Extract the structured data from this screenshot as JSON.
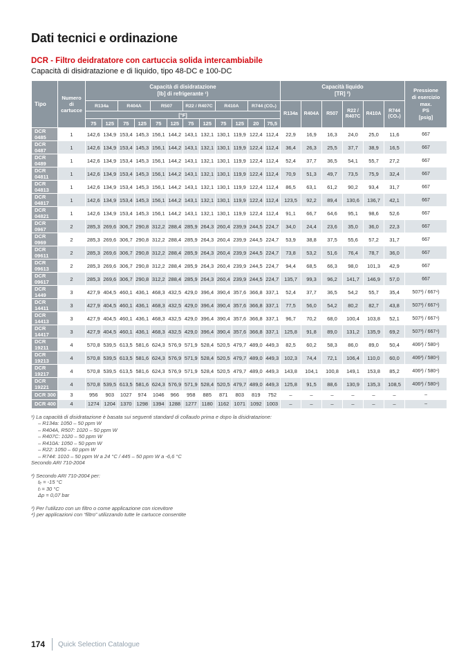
{
  "page": {
    "title": "Dati tecnici e ordinazione",
    "subtitle_red": "DCR - Filtro deidratatore con cartuccia solida intercambiabile",
    "subtitle": "Capacità di disidratazione e di liquido, tipo 48-DC e 100-DC",
    "footer": {
      "page_number": "174",
      "catalogue_name": "Quick Selection Catalogue"
    }
  },
  "table": {
    "header": {
      "tipo": "Tipo",
      "cartridges": "Numero\ndi\ncartucce",
      "dehydration_group": "Capacità di disidratazione\n[lb] di refrigerante ¹)",
      "liquid_group": "Capacità liquido\n[TR] ²)",
      "pressure": "Pressione\ndi esercizio\nmax.\nPS\n[psig]",
      "refrigerants": [
        "R134a",
        "R404A",
        "R507",
        "R22 / R407C",
        "R410A",
        "R744 (CO₂)"
      ],
      "liquid_refrigerants": [
        "R134a",
        "R404A",
        "R507",
        "R22 / R407C",
        "R410A",
        "R744 (CO₂)"
      ],
      "fahrenheit": "[°F]",
      "temps": [
        "75",
        "125",
        "75",
        "125",
        "75",
        "125",
        "75",
        "125",
        "75",
        "125",
        "20",
        "75,5"
      ]
    },
    "rows": [
      {
        "tipo": "DCR 0485",
        "cartridges": "1",
        "dehydration": [
          "142,6",
          "134,9",
          "153,4",
          "145,3",
          "156,1",
          "144,2",
          "143,1",
          "132,1",
          "130,1",
          "119,9",
          "122,4",
          "112,4"
        ],
        "liquid": [
          "22,9",
          "16,9",
          "16,3",
          "24,0",
          "25,0",
          "11,6"
        ],
        "pressure": "667"
      },
      {
        "tipo": "DCR 0487",
        "cartridges": "1",
        "dehydration": [
          "142,6",
          "134,9",
          "153,4",
          "145,3",
          "156,1",
          "144,2",
          "143,1",
          "132,1",
          "130,1",
          "119,9",
          "122,4",
          "112,4"
        ],
        "liquid": [
          "36,4",
          "26,3",
          "25,5",
          "37,7",
          "38,9",
          "16,5"
        ],
        "pressure": "667"
      },
      {
        "tipo": "DCR 0489",
        "cartridges": "1",
        "dehydration": [
          "142,6",
          "134,9",
          "153,4",
          "145,3",
          "156,1",
          "144,2",
          "143,1",
          "132,1",
          "130,1",
          "119,9",
          "122,4",
          "112,4"
        ],
        "liquid": [
          "52,4",
          "37,7",
          "36,5",
          "54,1",
          "55,7",
          "27,2"
        ],
        "pressure": "667"
      },
      {
        "tipo": "DCR 04811",
        "cartridges": "1",
        "dehydration": [
          "142,6",
          "134,9",
          "153,4",
          "145,3",
          "156,1",
          "144,2",
          "143,1",
          "132,1",
          "130,1",
          "119,9",
          "122,4",
          "112,4"
        ],
        "liquid": [
          "70,9",
          "51,3",
          "49,7",
          "73,5",
          "75,9",
          "32,4"
        ],
        "pressure": "667"
      },
      {
        "tipo": "DCR 04813",
        "cartridges": "1",
        "dehydration": [
          "142,6",
          "134,9",
          "153,4",
          "145,3",
          "156,1",
          "144,2",
          "143,1",
          "132,1",
          "130,1",
          "119,9",
          "122,4",
          "112,4"
        ],
        "liquid": [
          "86,5",
          "63,1",
          "61,2",
          "90,2",
          "93,4",
          "31,7"
        ],
        "pressure": "667"
      },
      {
        "tipo": "DCR 04817",
        "cartridges": "1",
        "dehydration": [
          "142,6",
          "134,9",
          "153,4",
          "145,3",
          "156,1",
          "144,2",
          "143,1",
          "132,1",
          "130,1",
          "119,9",
          "122,4",
          "112,4"
        ],
        "liquid": [
          "123,5",
          "92,2",
          "89,4",
          "130,6",
          "136,7",
          "42,1"
        ],
        "pressure": "667"
      },
      {
        "tipo": "DCR 04821",
        "cartridges": "1",
        "dehydration": [
          "142,6",
          "134,9",
          "153,4",
          "145,3",
          "156,1",
          "144,2",
          "143,1",
          "132,1",
          "130,1",
          "119,9",
          "122,4",
          "112,4"
        ],
        "liquid": [
          "91,1",
          "66,7",
          "64,6",
          "95,1",
          "98,6",
          "52,6"
        ],
        "pressure": "667"
      },
      {
        "tipo": "DCR 0967",
        "cartridges": "2",
        "dehydration": [
          "285,3",
          "269,6",
          "306,7",
          "290,8",
          "312,2",
          "288,4",
          "285,9",
          "264,3",
          "260,4",
          "239,9",
          "244,5",
          "224,7"
        ],
        "liquid": [
          "34,0",
          "24,4",
          "23,6",
          "35,0",
          "36,0",
          "22,3"
        ],
        "pressure": "667"
      },
      {
        "tipo": "DCR 0969",
        "cartridges": "2",
        "dehydration": [
          "285,3",
          "269,6",
          "306,7",
          "290,8",
          "312,2",
          "288,4",
          "285,9",
          "264,3",
          "260,4",
          "239,9",
          "244,5",
          "224,7"
        ],
        "liquid": [
          "53,9",
          "38,8",
          "37,5",
          "55,6",
          "57,2",
          "31,7"
        ],
        "pressure": "667"
      },
      {
        "tipo": "DCR 09611",
        "cartridges": "2",
        "dehydration": [
          "285,3",
          "269,6",
          "306,7",
          "290,8",
          "312,2",
          "288,4",
          "285,9",
          "264,3",
          "260,4",
          "239,9",
          "244,5",
          "224,7"
        ],
        "liquid": [
          "73,8",
          "53,2",
          "51,6",
          "76,4",
          "78,7",
          "36,0"
        ],
        "pressure": "667"
      },
      {
        "tipo": "DCR 09613",
        "cartridges": "2",
        "dehydration": [
          "285,3",
          "269,6",
          "306,7",
          "290,8",
          "312,2",
          "288,4",
          "285,9",
          "264,3",
          "260,4",
          "239,9",
          "244,5",
          "224,7"
        ],
        "liquid": [
          "94,4",
          "68,5",
          "66,3",
          "98,0",
          "101,3",
          "42,9"
        ],
        "pressure": "667"
      },
      {
        "tipo": "DCR 09617",
        "cartridges": "2",
        "dehydration": [
          "285,3",
          "269,6",
          "306,7",
          "290,8",
          "312,2",
          "288,4",
          "285,9",
          "264,3",
          "260,4",
          "239,9",
          "244,5",
          "224,7"
        ],
        "liquid": [
          "135,7",
          "99,3",
          "96,2",
          "141,7",
          "146,9",
          "57,0"
        ],
        "pressure": "667"
      },
      {
        "tipo": "DCR 1449",
        "cartridges": "3",
        "dehydration": [
          "427,9",
          "404,5",
          "460,1",
          "436,1",
          "468,3",
          "432,5",
          "429,0",
          "396,4",
          "390,4",
          "357,6",
          "366,8",
          "337,1"
        ],
        "liquid": [
          "52,4",
          "37,7",
          "36,5",
          "54,2",
          "55,7",
          "35,4"
        ],
        "pressure": "507³) / 667⁴)"
      },
      {
        "tipo": "DCR 14411",
        "cartridges": "3",
        "dehydration": [
          "427,9",
          "404,5",
          "460,1",
          "436,1",
          "468,3",
          "432,5",
          "429,0",
          "396,4",
          "390,4",
          "357,6",
          "366,8",
          "337,1"
        ],
        "liquid": [
          "77,5",
          "56,0",
          "54,2",
          "80,2",
          "82,7",
          "43,8"
        ],
        "pressure": "507³) / 667⁴)"
      },
      {
        "tipo": "DCR 14413",
        "cartridges": "3",
        "dehydration": [
          "427,9",
          "404,5",
          "460,1",
          "436,1",
          "468,3",
          "432,5",
          "429,0",
          "396,4",
          "390,4",
          "357,6",
          "366,8",
          "337,1"
        ],
        "liquid": [
          "96,7",
          "70,2",
          "68,0",
          "100,4",
          "103,8",
          "52,1"
        ],
        "pressure": "507³) / 667⁴)"
      },
      {
        "tipo": "DCR 14417",
        "cartridges": "3",
        "dehydration": [
          "427,9",
          "404,5",
          "460,1",
          "436,1",
          "468,3",
          "432,5",
          "429,0",
          "396,4",
          "390,4",
          "357,6",
          "366,8",
          "337,1"
        ],
        "liquid": [
          "125,8",
          "91,8",
          "89,0",
          "131,2",
          "135,9",
          "69,2"
        ],
        "pressure": "507³) / 667⁴)"
      },
      {
        "tipo": "DCR 19211",
        "cartridges": "4",
        "dehydration": [
          "570,8",
          "539,5",
          "613,5",
          "581,6",
          "624,3",
          "576,9",
          "571,9",
          "528,4",
          "520,5",
          "479,7",
          "489,0",
          "449,3"
        ],
        "liquid": [
          "82,5",
          "60,2",
          "58,3",
          "86,0",
          "89,0",
          "50,4"
        ],
        "pressure": "406³) / 580⁴)"
      },
      {
        "tipo": "DCR 19213",
        "cartridges": "4",
        "dehydration": [
          "570,8",
          "539,5",
          "613,5",
          "581,6",
          "624,3",
          "576,9",
          "571,9",
          "528,4",
          "520,5",
          "479,7",
          "489,0",
          "449,3"
        ],
        "liquid": [
          "102,3",
          "74,4",
          "72,1",
          "106,4",
          "110,0",
          "60,0"
        ],
        "pressure": "406³) / 580⁴)"
      },
      {
        "tipo": "DCR 19217",
        "cartridges": "4",
        "dehydration": [
          "570,8",
          "539,5",
          "613,5",
          "581,6",
          "624,3",
          "576,9",
          "571,9",
          "528,4",
          "520,5",
          "479,7",
          "489,0",
          "449,3"
        ],
        "liquid": [
          "143,8",
          "104,1",
          "100,8",
          "149,1",
          "153,8",
          "85,2"
        ],
        "pressure": "406³) / 580⁴)"
      },
      {
        "tipo": "DCR 19221",
        "cartridges": "4",
        "dehydration": [
          "570,8",
          "539,5",
          "613,5",
          "581,6",
          "624,3",
          "576,9",
          "571,9",
          "528,4",
          "520,5",
          "479,7",
          "489,0",
          "449,3"
        ],
        "liquid": [
          "125,8",
          "91,5",
          "88,6",
          "130,9",
          "135,3",
          "108,5"
        ],
        "pressure": "406³) / 580⁴)"
      },
      {
        "tipo": "DCR 300",
        "cartridges": "3",
        "dehydration": [
          "956",
          "903",
          "1027",
          "974",
          "1046",
          "966",
          "958",
          "885",
          "871",
          "803",
          "819",
          "752"
        ],
        "liquid": [
          "–",
          "–",
          "–",
          "–",
          "–",
          "–"
        ],
        "pressure": "–"
      },
      {
        "tipo": "DCR 400",
        "cartridges": "4",
        "dehydration": [
          "1274",
          "1204",
          "1370",
          "1298",
          "1394",
          "1288",
          "1277",
          "1180",
          "1162",
          "1071",
          "1092",
          "1003"
        ],
        "liquid": [
          "–",
          "–",
          "–",
          "–",
          "–",
          "–"
        ],
        "pressure": "–"
      }
    ]
  },
  "footnotes": [
    {
      "lines": [
        {
          "text": "¹) La capacità di disidratazione è basata sui seguenti standard di collaudo prima e dopo la disidratazione:",
          "indent": 0
        },
        {
          "text": "– R134a: 1050 – 50 ppm W",
          "indent": 1
        },
        {
          "text": "– R404A, R507: 1020 – 50 ppm W",
          "indent": 1
        },
        {
          "text": "– R407C: 1020 – 50 ppm W",
          "indent": 1
        },
        {
          "text": "– R410A: 1050 – 50 ppm W",
          "indent": 1
        },
        {
          "text": "– R22: 1050 – 60 ppm W",
          "indent": 1
        },
        {
          "text": "– R744: 1010 – 50 ppm W a 24 °C / 445 – 50 ppm W a -6,6 °C",
          "indent": 1
        },
        {
          "text": "Secondo ARI 710-2004",
          "indent": 0
        }
      ]
    },
    {
      "lines": [
        {
          "text": "²) Secondo ARI 710-2004 per:",
          "indent": 0
        },
        {
          "text": "tₑ = -15 °C",
          "indent": 1
        },
        {
          "text": "tₗ = 30 °C",
          "indent": 1
        },
        {
          "text": "Δp = 0,07 bar",
          "indent": 1
        }
      ]
    },
    {
      "lines": [
        {
          "text": "³) Per l’utilizzo con un filtro o come applicazione con ricevitore",
          "indent": 0
        },
        {
          "text": "⁴) per applicazioni con “filtro” utilizzando tutte le cartucce consentite",
          "indent": 0
        }
      ]
    }
  ]
}
